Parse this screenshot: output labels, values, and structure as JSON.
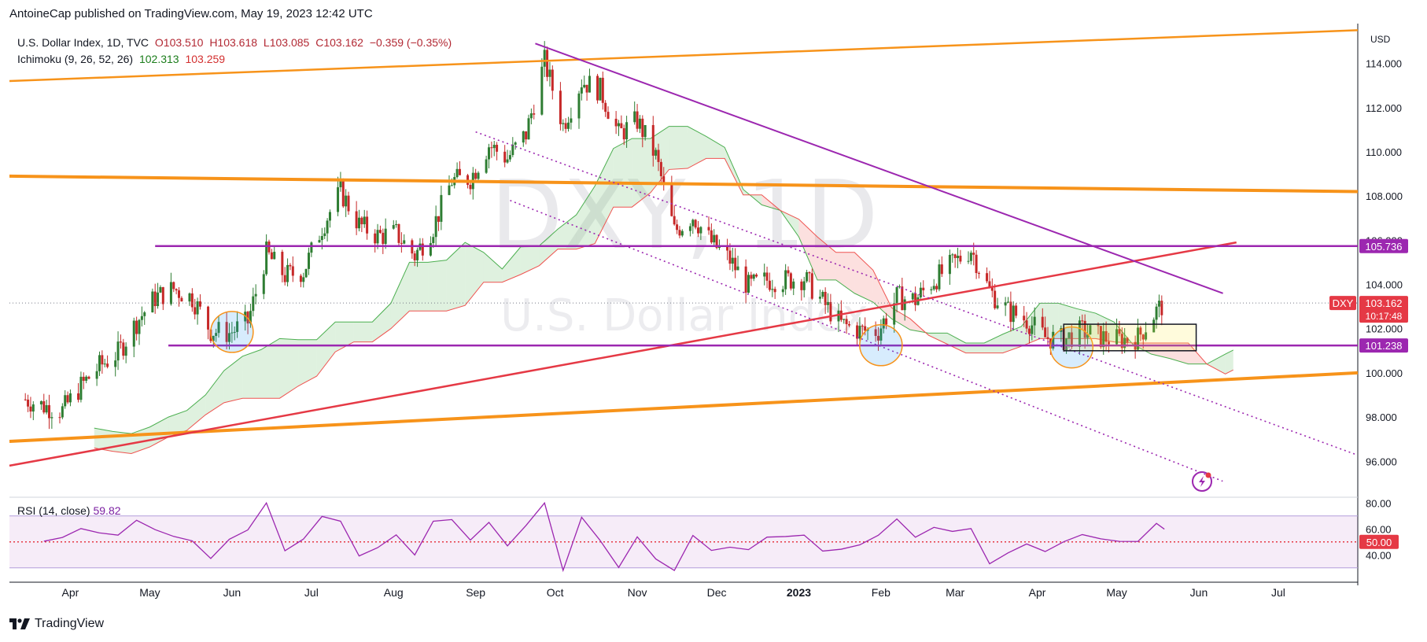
{
  "header": {
    "publish_line": "AntoineCap published on TradingView.com, May 19, 2023 12:42 UTC"
  },
  "legend": {
    "symbol": "U.S. Dollar Index, 1D, TVC",
    "open": "O103.510",
    "high": "H103.618",
    "low": "L103.085",
    "close": "C103.162",
    "change": "−0.359 (−0.35%)",
    "ichimoku_label": "Ichimoku (9, 26, 52, 26)",
    "ichimoku_a": "102.313",
    "ichimoku_b": "103.259"
  },
  "rsi_legend": {
    "label": "RSI (14, close)",
    "value": "59.82"
  },
  "watermark": {
    "ticker": "DXY, 1D",
    "name": "U.S. Dollar Index"
  },
  "brand": {
    "name": "TradingView"
  },
  "colors": {
    "orange": "#f7931a",
    "purple": "#9c27b0",
    "red": "#e53945",
    "cloud_green": "#4caf50",
    "cloud_red": "#ef5350",
    "candle_up": "#2e7d32",
    "candle_down": "#c62828",
    "rsi": "#9c27b0"
  },
  "chart_data": {
    "type": "candlestick",
    "symbol": "DXY",
    "timeframe": "1D",
    "y_axis": {
      "unit": "USD",
      "ticks": [
        "114.000",
        "112.000",
        "110.000",
        "108.000",
        "106.000",
        "104.000",
        "102.000",
        "100.000",
        "98.000",
        "96.000"
      ],
      "range": [
        94.8,
        115.8
      ]
    },
    "x_axis": {
      "ticks": [
        "Apr",
        "May",
        "Jun",
        "Jul",
        "Aug",
        "Sep",
        "Oct",
        "Nov",
        "Dec",
        "2023",
        "Feb",
        "Mar",
        "Apr",
        "May",
        "Jun",
        "Jul"
      ]
    },
    "price_labels": [
      {
        "label": "105.736",
        "value": 105.736,
        "color": "#9c27b0"
      },
      {
        "label": "DXY",
        "value": 103.162,
        "color": "#e53945"
      },
      {
        "label": "103.162",
        "value": 103.162,
        "color": "#e53945"
      },
      {
        "label": "10:17:48",
        "value": 103.162,
        "color": "#e53945"
      },
      {
        "label": "101.238",
        "value": 101.238,
        "color": "#9c27b0"
      }
    ],
    "last_close": 103.162,
    "levels": [
      105.736,
      101.238
    ],
    "trendlines": [
      {
        "name": "upper-orange",
        "from": {
          "x": 0,
          "y": 113.2
        },
        "to": {
          "x": 1.0,
          "y": 115.5
        }
      },
      {
        "name": "mid-orange",
        "from": {
          "x": 0,
          "y": 108.9
        },
        "to": {
          "x": 1.0,
          "y": 108.2
        }
      },
      {
        "name": "lower-orange",
        "from": {
          "x": 0,
          "y": 96.9
        },
        "to": {
          "x": 1.0,
          "y": 100.0
        }
      },
      {
        "name": "red-support",
        "from": {
          "x": 0,
          "y": 95.8
        },
        "to": {
          "x": 0.91,
          "y": 105.9
        }
      },
      {
        "name": "purple-downtrend",
        "from": {
          "x": 0.39,
          "y": 114.9
        },
        "to": {
          "x": 0.9,
          "y": 103.6
        }
      }
    ],
    "close_series": [
      [
        "2022-03-15",
        98.8
      ],
      [
        "2022-03-22",
        98.5
      ],
      [
        "2022-03-29",
        98.3
      ],
      [
        "2022-04-05",
        99.4
      ],
      [
        "2022-04-12",
        100.3
      ],
      [
        "2022-04-19",
        100.9
      ],
      [
        "2022-04-26",
        102.3
      ],
      [
        "2022-05-03",
        103.4
      ],
      [
        "2022-05-10",
        103.8
      ],
      [
        "2022-05-17",
        103.4
      ],
      [
        "2022-05-24",
        101.9
      ],
      [
        "2022-05-31",
        101.8
      ],
      [
        "2022-06-07",
        102.3
      ],
      [
        "2022-06-14",
        105.4
      ],
      [
        "2022-06-21",
        104.4
      ],
      [
        "2022-06-28",
        104.6
      ],
      [
        "2022-07-05",
        106.6
      ],
      [
        "2022-07-12",
        108.2
      ],
      [
        "2022-07-19",
        106.7
      ],
      [
        "2022-07-26",
        106.2
      ],
      [
        "2022-08-02",
        106.3
      ],
      [
        "2022-08-09",
        105.3
      ],
      [
        "2022-08-16",
        106.6
      ],
      [
        "2022-08-23",
        108.7
      ],
      [
        "2022-08-30",
        108.8
      ],
      [
        "2022-09-06",
        110.3
      ],
      [
        "2022-09-13",
        109.7
      ],
      [
        "2022-09-20",
        110.8
      ],
      [
        "2022-09-27",
        114.1
      ],
      [
        "2022-10-04",
        111.2
      ],
      [
        "2022-10-11",
        113.2
      ],
      [
        "2022-10-18",
        112.8
      ],
      [
        "2022-10-25",
        110.8
      ],
      [
        "2022-11-01",
        111.4
      ],
      [
        "2022-11-08",
        109.8
      ],
      [
        "2022-11-15",
        106.4
      ],
      [
        "2022-11-22",
        107.1
      ],
      [
        "2022-11-29",
        105.9
      ],
      [
        "2022-12-06",
        105.1
      ],
      [
        "2022-12-13",
        103.9
      ],
      [
        "2022-12-20",
        104.2
      ],
      [
        "2022-12-27",
        104.2
      ],
      [
        "2023-01-03",
        104.3
      ],
      [
        "2023-01-10",
        103.2
      ],
      [
        "2023-01-17",
        102.2
      ],
      [
        "2023-01-24",
        101.9
      ],
      [
        "2023-01-31",
        101.9
      ],
      [
        "2023-02-07",
        103.4
      ],
      [
        "2023-02-14",
        103.3
      ],
      [
        "2023-02-21",
        104.2
      ],
      [
        "2023-02-28",
        104.9
      ],
      [
        "2023-03-07",
        105.6
      ],
      [
        "2023-03-14",
        103.7
      ],
      [
        "2023-03-21",
        102.8
      ],
      [
        "2023-03-28",
        102.4
      ],
      [
        "2023-04-04",
        101.6
      ],
      [
        "2023-04-11",
        101.5
      ],
      [
        "2023-04-18",
        101.9
      ],
      [
        "2023-04-25",
        101.6
      ],
      [
        "2023-05-02",
        101.5
      ],
      [
        "2023-05-09",
        101.6
      ],
      [
        "2023-05-16",
        102.8
      ],
      [
        "2023-05-19",
        103.162
      ]
    ],
    "rsi": {
      "label": "RSI (14, close)",
      "value": 59.82,
      "ticks": [
        "80.00",
        "60.00",
        "40.00"
      ],
      "midline_label": "50.00",
      "band": [
        30,
        70
      ],
      "range": [
        25,
        82
      ]
    }
  }
}
